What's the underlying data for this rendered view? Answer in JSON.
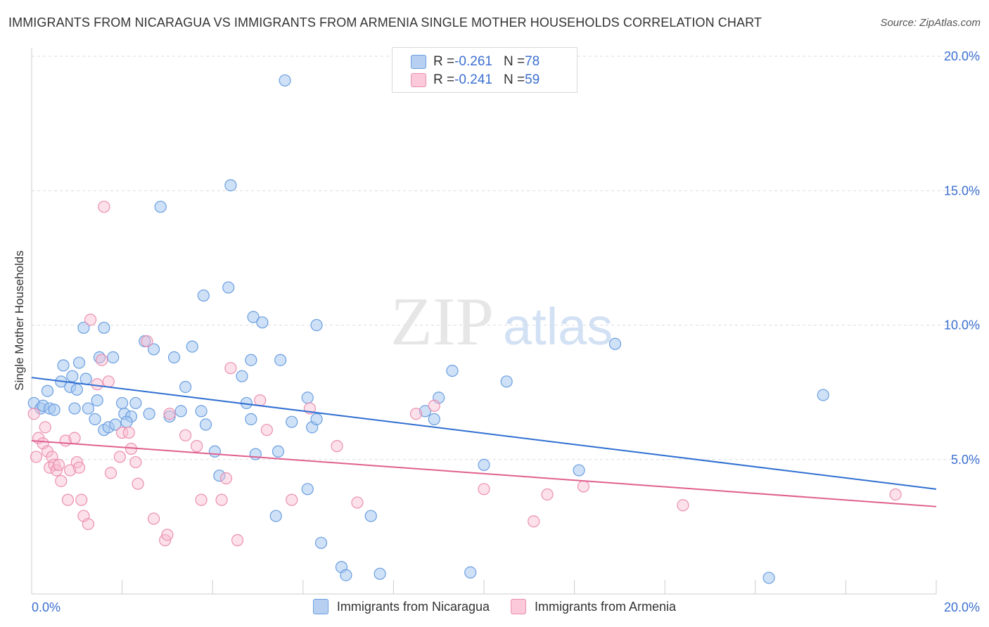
{
  "title": "IMMIGRANTS FROM NICARAGUA VS IMMIGRANTS FROM ARMENIA SINGLE MOTHER HOUSEHOLDS CORRELATION CHART",
  "source": "Source: ZipAtlas.com",
  "watermark": {
    "zip": "ZIP",
    "atlas": "atlas"
  },
  "legend": {
    "series1": {
      "r_label": "R = ",
      "r_value": "-0.261",
      "n_label": "N = ",
      "n_value": "78"
    },
    "series2": {
      "r_label": "R = ",
      "r_value": "-0.241",
      "n_label": "N = ",
      "n_value": "59"
    }
  },
  "colors": {
    "blue_fill": "#a8c8f0",
    "blue_stroke": "#6a9ee0",
    "blue_line": "#2f6fd1",
    "pink_fill": "#f8bcd0",
    "pink_stroke": "#eb8fb0",
    "pink_line": "#e0608f",
    "tick_text": "#3b6fd0"
  },
  "chart_data": {
    "type": "scatter",
    "title": "IMMIGRANTS FROM NICARAGUA VS IMMIGRANTS FROM ARMENIA SINGLE MOTHER HOUSEHOLDS CORRELATION CHART",
    "xlabel": "",
    "ylabel": "Single Mother Households",
    "xlim": [
      0,
      20
    ],
    "ylim": [
      0,
      20
    ],
    "x_tick_labels": [
      "0.0%",
      "20.0%"
    ],
    "y_ticks": [
      5,
      10,
      15,
      20
    ],
    "y_tick_labels": [
      "5.0%",
      "10.0%",
      "15.0%",
      "20.0%"
    ],
    "grid": "horizontal dashed",
    "legend_position": "top-center",
    "series": [
      {
        "name": "Immigrants from Nicaragua",
        "color": "#a8c8f0",
        "trend": {
          "x": [
            0,
            20
          ],
          "y": [
            8.05,
            3.9
          ]
        },
        "points": [
          [
            0.05,
            7.1
          ],
          [
            0.2,
            6.9
          ],
          [
            0.25,
            7.0
          ],
          [
            0.4,
            6.9
          ],
          [
            0.5,
            6.85
          ],
          [
            0.35,
            7.55
          ],
          [
            0.65,
            7.9
          ],
          [
            0.85,
            7.7
          ],
          [
            0.9,
            8.1
          ],
          [
            0.95,
            6.9
          ],
          [
            1.0,
            7.6
          ],
          [
            1.05,
            8.6
          ],
          [
            1.2,
            8.0
          ],
          [
            1.25,
            6.9
          ],
          [
            1.4,
            6.5
          ],
          [
            1.45,
            7.2
          ],
          [
            1.6,
            6.1
          ],
          [
            1.7,
            6.2
          ],
          [
            1.85,
            6.3
          ],
          [
            2.0,
            7.1
          ],
          [
            2.05,
            6.7
          ],
          [
            2.2,
            6.6
          ],
          [
            2.3,
            7.1
          ],
          [
            2.1,
            6.4
          ],
          [
            0.7,
            8.5
          ],
          [
            1.15,
            9.9
          ],
          [
            1.5,
            8.8
          ],
          [
            1.6,
            9.9
          ],
          [
            1.8,
            8.8
          ],
          [
            2.5,
            9.4
          ],
          [
            2.7,
            9.1
          ],
          [
            2.85,
            14.4
          ],
          [
            3.15,
            8.8
          ],
          [
            3.4,
            7.7
          ],
          [
            3.3,
            6.8
          ],
          [
            3.55,
            9.2
          ],
          [
            3.75,
            6.8
          ],
          [
            3.85,
            6.3
          ],
          [
            4.05,
            5.3
          ],
          [
            4.15,
            4.4
          ],
          [
            3.8,
            11.1
          ],
          [
            4.4,
            15.2
          ],
          [
            4.35,
            11.4
          ],
          [
            4.65,
            8.1
          ],
          [
            4.85,
            8.7
          ],
          [
            4.9,
            10.3
          ],
          [
            5.1,
            10.1
          ],
          [
            5.5,
            8.7
          ],
          [
            4.75,
            7.1
          ],
          [
            4.85,
            6.5
          ],
          [
            4.95,
            5.2
          ],
          [
            5.45,
            5.3
          ],
          [
            5.4,
            2.9
          ],
          [
            5.6,
            19.1
          ],
          [
            5.75,
            6.4
          ],
          [
            6.1,
            7.3
          ],
          [
            6.2,
            6.2
          ],
          [
            6.3,
            6.5
          ],
          [
            6.3,
            10.0
          ],
          [
            6.1,
            3.9
          ],
          [
            6.4,
            1.9
          ],
          [
            6.85,
            1.0
          ],
          [
            6.95,
            0.7
          ],
          [
            7.7,
            0.75
          ],
          [
            7.5,
            2.9
          ],
          [
            8.7,
            6.8
          ],
          [
            8.9,
            6.5
          ],
          [
            9.0,
            7.3
          ],
          [
            9.3,
            8.3
          ],
          [
            9.7,
            0.8
          ],
          [
            10.0,
            4.8
          ],
          [
            10.5,
            7.9
          ],
          [
            12.1,
            4.6
          ],
          [
            12.9,
            9.3
          ],
          [
            16.3,
            0.6
          ],
          [
            17.5,
            7.4
          ],
          [
            2.6,
            6.7
          ],
          [
            3.05,
            6.6
          ]
        ]
      },
      {
        "name": "Immigrants from Armenia",
        "color": "#f8bcd0",
        "trend": {
          "x": [
            0,
            20
          ],
          "y": [
            5.7,
            3.25
          ]
        },
        "points": [
          [
            0.05,
            6.7
          ],
          [
            0.1,
            5.1
          ],
          [
            0.15,
            5.8
          ],
          [
            0.25,
            5.6
          ],
          [
            0.3,
            6.2
          ],
          [
            0.35,
            5.3
          ],
          [
            0.4,
            4.7
          ],
          [
            0.45,
            5.1
          ],
          [
            0.5,
            4.8
          ],
          [
            0.55,
            4.6
          ],
          [
            0.6,
            4.8
          ],
          [
            0.65,
            4.2
          ],
          [
            0.75,
            5.7
          ],
          [
            0.8,
            3.5
          ],
          [
            0.85,
            4.6
          ],
          [
            0.95,
            5.8
          ],
          [
            1.0,
            4.9
          ],
          [
            1.05,
            4.7
          ],
          [
            1.1,
            3.5
          ],
          [
            1.15,
            2.9
          ],
          [
            1.25,
            2.6
          ],
          [
            1.3,
            10.2
          ],
          [
            1.45,
            7.8
          ],
          [
            1.55,
            8.7
          ],
          [
            1.6,
            14.4
          ],
          [
            1.7,
            7.9
          ],
          [
            1.75,
            4.5
          ],
          [
            1.95,
            5.1
          ],
          [
            2.0,
            6.0
          ],
          [
            2.15,
            6.0
          ],
          [
            2.2,
            5.4
          ],
          [
            2.3,
            4.9
          ],
          [
            2.35,
            4.1
          ],
          [
            2.55,
            9.4
          ],
          [
            2.7,
            2.8
          ],
          [
            2.95,
            2.0
          ],
          [
            3.0,
            2.2
          ],
          [
            3.05,
            6.7
          ],
          [
            3.4,
            5.9
          ],
          [
            3.65,
            5.5
          ],
          [
            3.75,
            3.5
          ],
          [
            4.2,
            3.5
          ],
          [
            4.3,
            4.3
          ],
          [
            4.4,
            8.4
          ],
          [
            4.55,
            2.0
          ],
          [
            5.05,
            7.2
          ],
          [
            5.2,
            6.1
          ],
          [
            5.75,
            3.5
          ],
          [
            6.15,
            6.9
          ],
          [
            6.75,
            5.5
          ],
          [
            7.2,
            3.4
          ],
          [
            8.5,
            6.7
          ],
          [
            8.9,
            7.0
          ],
          [
            10.0,
            3.9
          ],
          [
            11.1,
            2.7
          ],
          [
            11.4,
            3.7
          ],
          [
            12.2,
            4.0
          ],
          [
            14.4,
            3.3
          ],
          [
            19.1,
            3.7
          ]
        ]
      }
    ]
  }
}
